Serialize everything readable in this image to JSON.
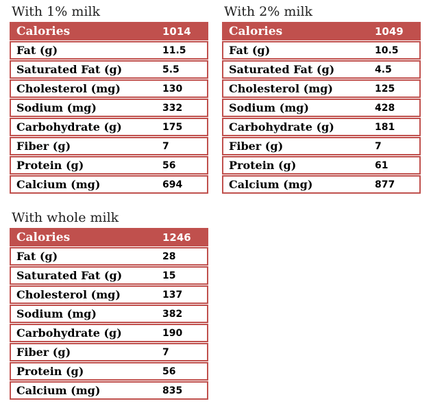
{
  "colors": {
    "accent_red": "#c0504d",
    "header_text": "#ffffff",
    "row_text": "#000000",
    "row_background": "#ffffff",
    "title_text": "#1f1f1f",
    "page_background": "#ffffff"
  },
  "tables": [
    {
      "title": "With 1% milk",
      "header": {
        "label": "Calories",
        "value": "1014"
      },
      "rows": [
        {
          "label": "Fat (g)",
          "value": "11.5"
        },
        {
          "label": "Saturated Fat (g)",
          "value": "5.5"
        },
        {
          "label": "Cholesterol (mg)",
          "value": "130"
        },
        {
          "label": "Sodium (mg)",
          "value": "332"
        },
        {
          "label": "Carbohydrate (g)",
          "value": "175"
        },
        {
          "label": "Fiber (g)",
          "value": "7"
        },
        {
          "label": "Protein (g)",
          "value": "56"
        },
        {
          "label": "Calcium (mg)",
          "value": "694"
        }
      ]
    },
    {
      "title": "With 2% milk",
      "header": {
        "label": "Calories",
        "value": "1049"
      },
      "rows": [
        {
          "label": "Fat (g)",
          "value": "10.5"
        },
        {
          "label": "Saturated Fat (g)",
          "value": "4.5"
        },
        {
          "label": "Cholesterol (mg)",
          "value": "125"
        },
        {
          "label": "Sodium (mg)",
          "value": "428"
        },
        {
          "label": "Carbohydrate (g)",
          "value": "181"
        },
        {
          "label": "Fiber (g)",
          "value": "7"
        },
        {
          "label": "Protein (g)",
          "value": "61"
        },
        {
          "label": "Calcium (mg)",
          "value": "877"
        }
      ]
    },
    {
      "title": "With whole milk",
      "header": {
        "label": "Calories",
        "value": "1246"
      },
      "rows": [
        {
          "label": "Fat (g)",
          "value": "28"
        },
        {
          "label": "Saturated Fat (g)",
          "value": "15"
        },
        {
          "label": "Cholesterol (mg)",
          "value": "137"
        },
        {
          "label": "Sodium (mg)",
          "value": "382"
        },
        {
          "label": "Carbohydrate (g)",
          "value": "190"
        },
        {
          "label": "Fiber (g)",
          "value": "7"
        },
        {
          "label": "Protein (g)",
          "value": "56"
        },
        {
          "label": "Calcium (mg)",
          "value": "835"
        }
      ]
    }
  ]
}
